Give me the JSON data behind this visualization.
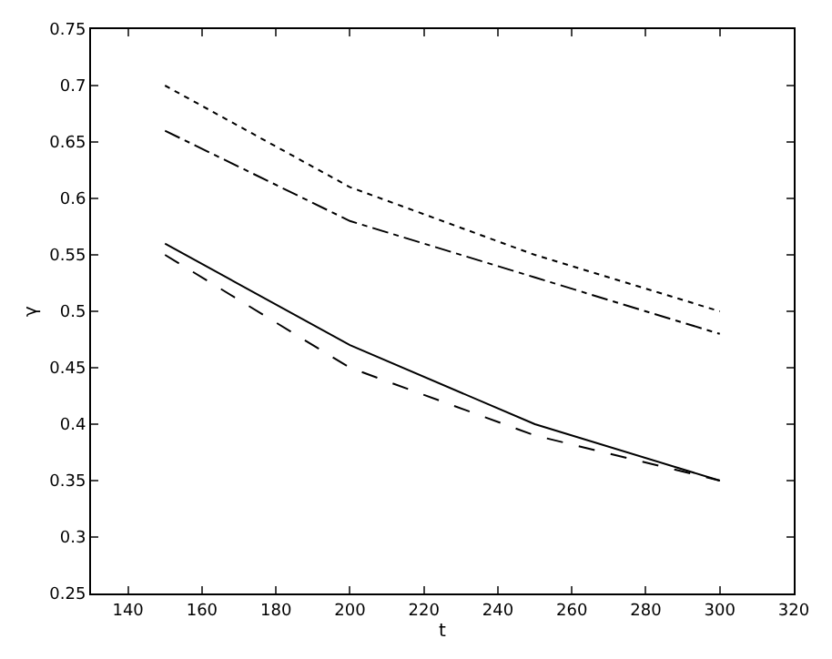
{
  "chart_data": {
    "type": "line",
    "xlabel": "t",
    "ylabel": "γ",
    "x": [
      150,
      200,
      250,
      300
    ],
    "series": [
      {
        "color": "#000000",
        "line_style": "solid",
        "values": [
          0.56,
          0.47,
          0.4,
          0.35
        ]
      },
      {
        "color": "#000000",
        "line_style": "dashed",
        "values": [
          0.55,
          0.45,
          0.39,
          0.35
        ]
      },
      {
        "color": "#000000",
        "line_style": "dotted",
        "values": [
          0.7,
          0.61,
          0.55,
          0.5
        ]
      },
      {
        "color": "#000000",
        "line_style": "dashdot",
        "values": [
          0.66,
          0.58,
          0.53,
          0.48
        ]
      }
    ],
    "xlim": [
      130,
      320
    ],
    "xticks": [
      140,
      160,
      180,
      200,
      220,
      240,
      260,
      280,
      300,
      320
    ],
    "ylim": [
      0.25,
      0.75
    ],
    "yticks": [
      0.25,
      0.3,
      0.35,
      0.4,
      0.45,
      0.5,
      0.55,
      0.6,
      0.65,
      0.7,
      0.75
    ],
    "marker": "none"
  }
}
